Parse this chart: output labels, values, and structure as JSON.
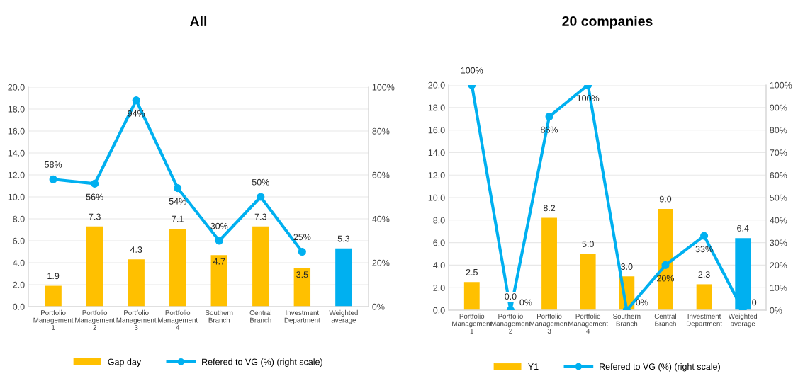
{
  "chart_data": [
    {
      "type": "bar",
      "title": "All",
      "categories": [
        "Portfolio Management 1",
        "Portfolio Management 2",
        "Portfolio Management 3",
        "Portfolio Management 4",
        "Southern Branch",
        "Central Branch",
        "Investment Department",
        "Weighted average"
      ],
      "series": [
        {
          "name": "Gap day",
          "type": "bar",
          "colors": [
            "#ffc000",
            "#ffc000",
            "#ffc000",
            "#ffc000",
            "#ffc000",
            "#ffc000",
            "#ffc000",
            "#00b0f0"
          ],
          "values": [
            1.9,
            7.3,
            4.3,
            7.1,
            4.7,
            7.3,
            3.5,
            5.3
          ],
          "value_labels": [
            "1.9",
            "7.3",
            "4.3",
            "7.1",
            "4.7",
            "7.3",
            "3.5",
            "5.3"
          ]
        },
        {
          "name": "Refered to VG (%) (right scale)",
          "type": "line",
          "axis": "y2",
          "color": "#00b0f0",
          "marker": "circle",
          "values": [
            58,
            56,
            94,
            54,
            30,
            50,
            25,
            null
          ],
          "value_labels": [
            "58%",
            "56%",
            "94%",
            "54%",
            "30%",
            "50%",
            "25%",
            null
          ]
        }
      ],
      "ylim": [
        0,
        20
      ],
      "yticks": [
        {
          "value": 0,
          "label": "0.0"
        },
        {
          "value": 2,
          "label": "2.0"
        },
        {
          "value": 4,
          "label": "4.0"
        },
        {
          "value": 6,
          "label": "6.0"
        },
        {
          "value": 8,
          "label": "8.0"
        },
        {
          "value": 10,
          "label": "10.0"
        },
        {
          "value": 12,
          "label": "12.0"
        },
        {
          "value": 14,
          "label": "14.0"
        },
        {
          "value": 16,
          "label": "16.0"
        },
        {
          "value": 18,
          "label": "18.0"
        },
        {
          "value": 20,
          "label": "20.0"
        }
      ],
      "y2lim": [
        0,
        100
      ],
      "y2ticks": [
        {
          "value": 0,
          "label": "0%"
        },
        {
          "value": 20,
          "label": "20%"
        },
        {
          "value": 40,
          "label": "40%"
        },
        {
          "value": 60,
          "label": "60%"
        },
        {
          "value": 80,
          "label": "80%"
        },
        {
          "value": 100,
          "label": "100%"
        }
      ],
      "grid": "y",
      "legend": "bottom"
    },
    {
      "type": "bar",
      "title": "20 companies",
      "categories": [
        "Portfolio Management 1",
        "Portfolio Management 2",
        "Portfolio Management 3",
        "Portfolio Management 4",
        "Southern Branch",
        "Central Branch",
        "Investment Department",
        "Weighted average"
      ],
      "series": [
        {
          "name": "Y1",
          "type": "bar",
          "colors": [
            "#ffc000",
            "#ffc000",
            "#ffc000",
            "#ffc000",
            "#ffc000",
            "#ffc000",
            "#ffc000",
            "#00b0f0"
          ],
          "values": [
            2.5,
            0.0,
            8.2,
            5.0,
            3.0,
            9.0,
            2.3,
            6.4
          ],
          "value_labels": [
            "2.5",
            "0.0",
            "8.2",
            "5.0",
            "3.0",
            "9.0",
            "2.3",
            "6.4"
          ]
        },
        {
          "name": "Refered to VG (%) (right scale)",
          "type": "line",
          "axis": "y2",
          "color": "#00b0f0",
          "marker": "circle",
          "values": [
            100,
            0,
            86,
            100,
            0,
            20,
            33,
            0
          ],
          "value_labels": [
            "100%",
            "0%",
            "86%",
            "100%",
            "0%",
            "20%",
            "33%",
            "0"
          ]
        }
      ],
      "ylim": [
        0,
        20
      ],
      "yticks": [
        {
          "value": 0,
          "label": "0.0"
        },
        {
          "value": 2,
          "label": "2.0"
        },
        {
          "value": 4,
          "label": "4.0"
        },
        {
          "value": 6,
          "label": "6.0"
        },
        {
          "value": 8,
          "label": "8.0"
        },
        {
          "value": 10,
          "label": "10.0"
        },
        {
          "value": 12,
          "label": "12.0"
        },
        {
          "value": 14,
          "label": "14.0"
        },
        {
          "value": 16,
          "label": "16.0"
        },
        {
          "value": 18,
          "label": "18.0"
        },
        {
          "value": 20,
          "label": "20.0"
        }
      ],
      "y2lim": [
        0,
        100
      ],
      "y2ticks": [
        {
          "value": 0,
          "label": "0%"
        },
        {
          "value": 10,
          "label": "10%"
        },
        {
          "value": 20,
          "label": "20%"
        },
        {
          "value": 30,
          "label": "30%"
        },
        {
          "value": 40,
          "label": "40%"
        },
        {
          "value": 50,
          "label": "50%"
        },
        {
          "value": 60,
          "label": "60%"
        },
        {
          "value": 70,
          "label": "70%"
        },
        {
          "value": 80,
          "label": "80%"
        },
        {
          "value": 90,
          "label": "90%"
        },
        {
          "value": 100,
          "label": "100%"
        }
      ],
      "grid": "y",
      "legend": "bottom"
    }
  ]
}
